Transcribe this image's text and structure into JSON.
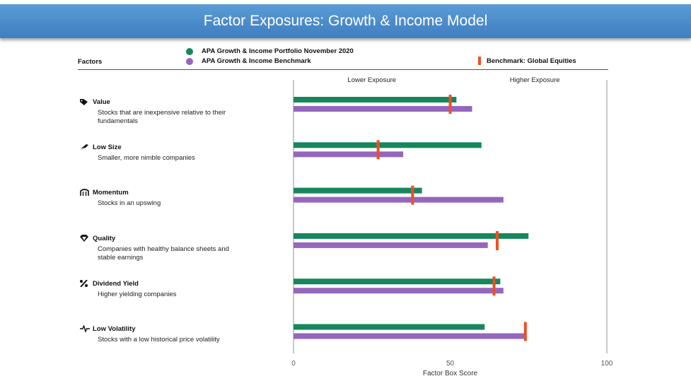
{
  "title": "Factor Exposures: Growth & Income Model",
  "legend": {
    "portfolio": "APA Growth & Income Portfolio November 2020",
    "benchmark_series": "APA Growth & Income Benchmark",
    "benchmark_marker": "Benchmark: Global Equities"
  },
  "factors_heading": "Factors",
  "factors": [
    {
      "name": "Value",
      "icon": "tag-icon",
      "desc1": "Stocks that are inexpensive relative to their",
      "desc2": "fundamentals"
    },
    {
      "name": "Low Size",
      "icon": "feather-icon",
      "desc1": "Smaller, more nimble companies",
      "desc2": ""
    },
    {
      "name": "Momentum",
      "icon": "stairs-icon",
      "desc1": "Stocks in an upswing",
      "desc2": ""
    },
    {
      "name": "Quality",
      "icon": "diamond-icon",
      "desc1": "Companies with healthy balance sheets and",
      "desc2": "stable earnings"
    },
    {
      "name": "Dividend Yield",
      "icon": "percent-icon",
      "desc1": "Higher yielding companies",
      "desc2": ""
    },
    {
      "name": "Low Volatility",
      "icon": "pulse-icon",
      "desc1": "Stocks with a low historical price volatility",
      "desc2": ""
    }
  ],
  "colors": {
    "portfolio": "#16875c",
    "benchmark_series": "#9467bd",
    "benchmark_marker": "#f04f23",
    "axis": "#aaaaaa"
  },
  "chart_data": {
    "type": "bar",
    "orientation": "horizontal",
    "categories": [
      "Value",
      "Low Size",
      "Momentum",
      "Quality",
      "Dividend Yield",
      "Low Volatility"
    ],
    "series": [
      {
        "name": "APA Growth & Income Portfolio November 2020",
        "values": [
          52,
          60,
          41,
          75,
          66,
          61
        ]
      },
      {
        "name": "APA Growth & Income Benchmark",
        "values": [
          57,
          35,
          67,
          62,
          67,
          74
        ]
      }
    ],
    "markers": {
      "name": "Benchmark: Global Equities",
      "values": [
        50,
        27,
        38,
        65,
        64,
        74
      ]
    },
    "xlabel": "Factor Box Score",
    "xlim": [
      0,
      100
    ],
    "xticks": [
      "0",
      "50",
      "100"
    ],
    "region_labels": [
      "Lower Exposure",
      "Higher Exposure"
    ],
    "grid": false,
    "legend_position": "top"
  }
}
